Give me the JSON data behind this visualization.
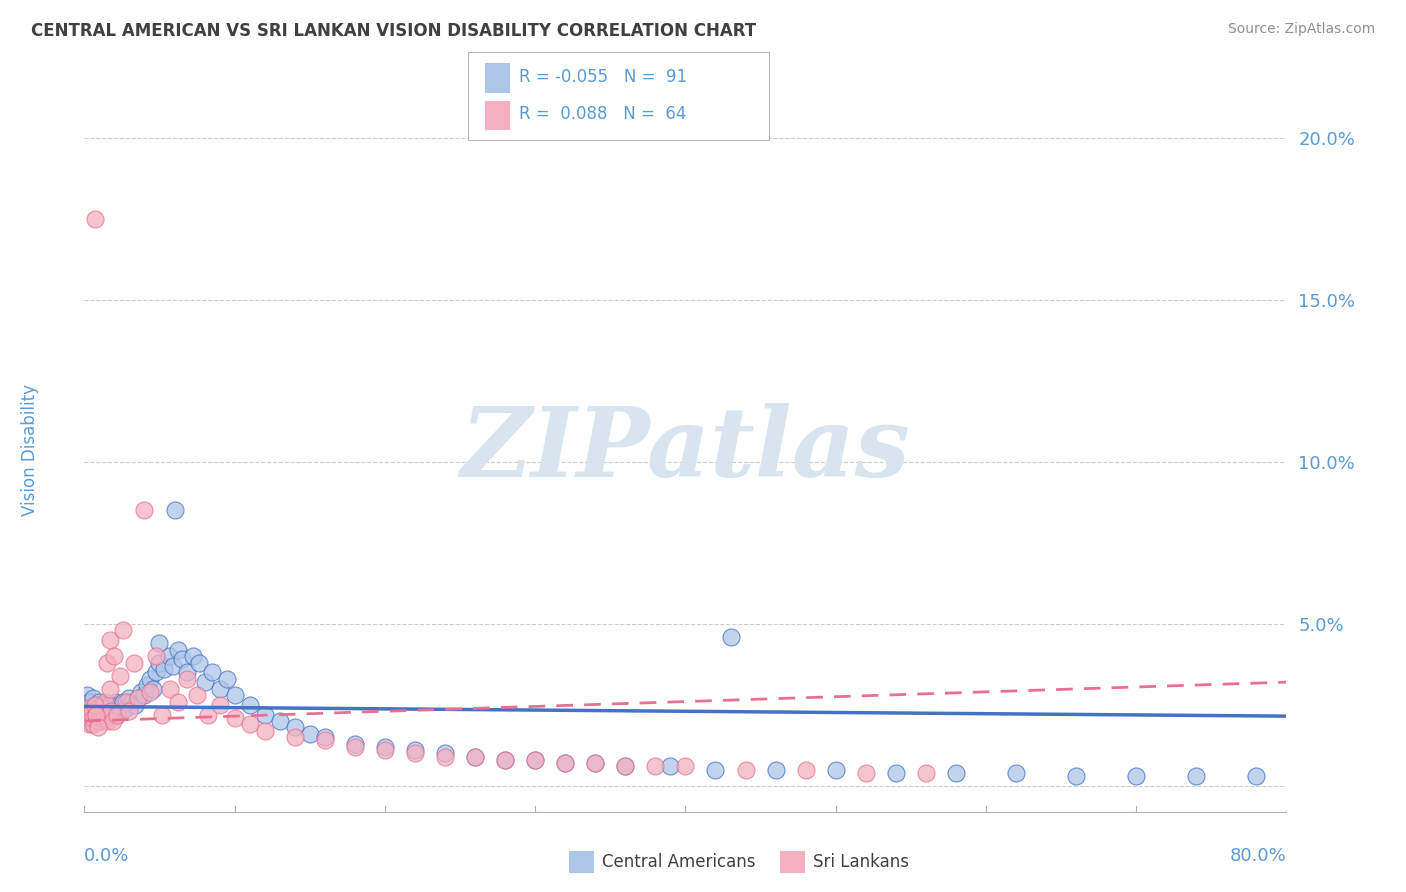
{
  "title": "CENTRAL AMERICAN VS SRI LANKAN VISION DISABILITY CORRELATION CHART",
  "source": "Source: ZipAtlas.com",
  "ylabel": "Vision Disability",
  "xmin": 0.0,
  "xmax": 0.8,
  "ymin": -0.008,
  "ymax": 0.215,
  "yticks": [
    0.0,
    0.05,
    0.1,
    0.15,
    0.2
  ],
  "ytick_labels": [
    "",
    "5.0%",
    "10.0%",
    "15.0%",
    "20.0%"
  ],
  "legend_r1": "-0.055",
  "legend_n1": "91",
  "legend_r2": "0.088",
  "legend_n2": "64",
  "blue_color": "#aec6e8",
  "pink_color": "#f4b0c0",
  "blue_line_color": "#4472c4",
  "pink_line_color": "#e87090",
  "title_color": "#404040",
  "source_color": "#909090",
  "axis_color": "#5b9bd5",
  "watermark_color": "#d8e4f0",
  "grid_color": "#c8c8c8",
  "blue_scatter_x": [
    0.001,
    0.002,
    0.002,
    0.003,
    0.003,
    0.004,
    0.004,
    0.005,
    0.005,
    0.006,
    0.006,
    0.007,
    0.007,
    0.008,
    0.008,
    0.009,
    0.009,
    0.01,
    0.01,
    0.011,
    0.011,
    0.012,
    0.013,
    0.014,
    0.015,
    0.016,
    0.017,
    0.018,
    0.019,
    0.02,
    0.021,
    0.022,
    0.023,
    0.024,
    0.025,
    0.026,
    0.028,
    0.03,
    0.032,
    0.034,
    0.036,
    0.038,
    0.04,
    0.042,
    0.044,
    0.046,
    0.048,
    0.05,
    0.053,
    0.056,
    0.059,
    0.062,
    0.065,
    0.068,
    0.072,
    0.076,
    0.08,
    0.085,
    0.09,
    0.095,
    0.1,
    0.11,
    0.12,
    0.13,
    0.14,
    0.15,
    0.16,
    0.18,
    0.2,
    0.22,
    0.24,
    0.26,
    0.28,
    0.3,
    0.32,
    0.34,
    0.36,
    0.39,
    0.42,
    0.46,
    0.5,
    0.54,
    0.58,
    0.62,
    0.66,
    0.7,
    0.74,
    0.78,
    0.05,
    0.06,
    0.43
  ],
  "blue_scatter_y": [
    0.025,
    0.022,
    0.028,
    0.02,
    0.026,
    0.023,
    0.021,
    0.024,
    0.019,
    0.022,
    0.027,
    0.021,
    0.025,
    0.023,
    0.02,
    0.024,
    0.022,
    0.021,
    0.026,
    0.023,
    0.02,
    0.025,
    0.022,
    0.024,
    0.021,
    0.023,
    0.025,
    0.022,
    0.024,
    0.023,
    0.026,
    0.022,
    0.025,
    0.024,
    0.023,
    0.026,
    0.024,
    0.027,
    0.026,
    0.025,
    0.027,
    0.029,
    0.028,
    0.031,
    0.033,
    0.03,
    0.035,
    0.038,
    0.036,
    0.04,
    0.037,
    0.042,
    0.039,
    0.035,
    0.04,
    0.038,
    0.032,
    0.035,
    0.03,
    0.033,
    0.028,
    0.025,
    0.022,
    0.02,
    0.018,
    0.016,
    0.015,
    0.013,
    0.012,
    0.011,
    0.01,
    0.009,
    0.008,
    0.008,
    0.007,
    0.007,
    0.006,
    0.006,
    0.005,
    0.005,
    0.005,
    0.004,
    0.004,
    0.004,
    0.003,
    0.003,
    0.003,
    0.003,
    0.044,
    0.085,
    0.046
  ],
  "pink_scatter_x": [
    0.001,
    0.002,
    0.003,
    0.003,
    0.004,
    0.005,
    0.006,
    0.006,
    0.007,
    0.008,
    0.009,
    0.01,
    0.011,
    0.012,
    0.013,
    0.014,
    0.015,
    0.016,
    0.017,
    0.018,
    0.019,
    0.02,
    0.022,
    0.024,
    0.026,
    0.028,
    0.03,
    0.033,
    0.036,
    0.04,
    0.044,
    0.048,
    0.052,
    0.057,
    0.062,
    0.068,
    0.075,
    0.082,
    0.09,
    0.1,
    0.11,
    0.12,
    0.14,
    0.16,
    0.18,
    0.2,
    0.22,
    0.24,
    0.26,
    0.28,
    0.3,
    0.32,
    0.34,
    0.36,
    0.38,
    0.4,
    0.44,
    0.48,
    0.52,
    0.56,
    0.007,
    0.017,
    0.008,
    0.009
  ],
  "pink_scatter_y": [
    0.022,
    0.02,
    0.024,
    0.019,
    0.021,
    0.023,
    0.019,
    0.021,
    0.175,
    0.022,
    0.02,
    0.023,
    0.021,
    0.024,
    0.022,
    0.026,
    0.038,
    0.02,
    0.045,
    0.023,
    0.02,
    0.04,
    0.022,
    0.034,
    0.048,
    0.026,
    0.023,
    0.038,
    0.027,
    0.085,
    0.029,
    0.04,
    0.022,
    0.03,
    0.026,
    0.033,
    0.028,
    0.022,
    0.025,
    0.021,
    0.019,
    0.017,
    0.015,
    0.014,
    0.012,
    0.011,
    0.01,
    0.009,
    0.009,
    0.008,
    0.008,
    0.007,
    0.007,
    0.006,
    0.006,
    0.006,
    0.005,
    0.005,
    0.004,
    0.004,
    0.025,
    0.03,
    0.022,
    0.018
  ],
  "blue_trend_x": [
    0.0,
    0.8
  ],
  "blue_trend_y": [
    0.0245,
    0.0215
  ],
  "pink_trend_x": [
    0.0,
    0.8
  ],
  "pink_trend_y": [
    0.02,
    0.032
  ]
}
